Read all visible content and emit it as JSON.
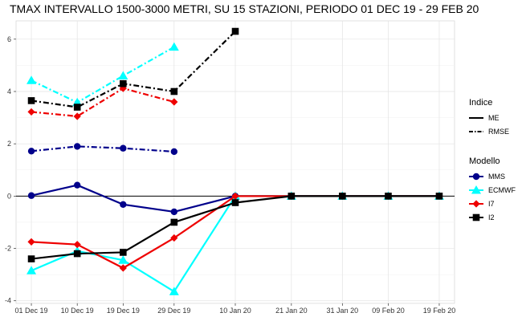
{
  "chart_data": {
    "type": "line",
    "title": "TMAX INTERVALLO 1500-3000 METRI, SU 15 STAZIONI, PERIODO 01 DEC 19  -  29 FEB 20",
    "xlabel": "",
    "ylabel": "",
    "categories": [
      "01 Dec 19",
      "10 Dec 19",
      "19 Dec 19",
      "29 Dec 19",
      "10 Jan 20",
      "21 Jan 20",
      "31 Jan 20",
      "09 Feb 20",
      "19 Feb 20"
    ],
    "x_days": [
      0,
      9,
      18,
      28,
      40,
      51,
      61,
      70,
      80
    ],
    "yticks": [
      -4,
      -2,
      0,
      2,
      4,
      6
    ],
    "ylim": [
      -4.1,
      6.7
    ],
    "grid": true,
    "legend_position": "right",
    "legend": {
      "indice_title": "Indice",
      "indice": [
        {
          "name": "ME",
          "dash": "solid"
        },
        {
          "name": "RMSE",
          "dash": "dotdash"
        }
      ],
      "modello_title": "Modello",
      "modello": [
        {
          "name": "MMS",
          "color": "#00008b",
          "shape": "circle"
        },
        {
          "name": "ECMWF",
          "color": "#00ffff",
          "shape": "triangle"
        },
        {
          "name": "I7",
          "color": "#ee0000",
          "shape": "diamond"
        },
        {
          "name": "I2",
          "color": "#000000",
          "shape": "square"
        }
      ]
    },
    "series": [
      {
        "name": "MMS",
        "indice": "ME",
        "color": "#00008b",
        "shape": "circle",
        "points": [
          [
            0,
            0.02
          ],
          [
            9,
            0.42
          ],
          [
            18,
            -0.32
          ],
          [
            28,
            -0.6
          ],
          [
            40,
            0.0
          ],
          [
            51,
            0.0
          ],
          [
            61,
            0.0
          ],
          [
            70,
            0.0
          ],
          [
            80,
            0.0
          ]
        ]
      },
      {
        "name": "ECMWF",
        "indice": "ME",
        "color": "#00ffff",
        "shape": "triangle",
        "points": [
          [
            0,
            -2.85
          ],
          [
            9,
            -2.1
          ],
          [
            18,
            -2.45
          ],
          [
            28,
            -3.65
          ],
          [
            40,
            0.0
          ],
          [
            51,
            0.0
          ],
          [
            61,
            0.0
          ],
          [
            70,
            0.0
          ],
          [
            80,
            0.0
          ]
        ]
      },
      {
        "name": "I7",
        "indice": "ME",
        "color": "#ee0000",
        "shape": "diamond",
        "points": [
          [
            0,
            -1.75
          ],
          [
            9,
            -1.85
          ],
          [
            18,
            -2.75
          ],
          [
            28,
            -1.6
          ],
          [
            40,
            0.0
          ],
          [
            51,
            0.0
          ],
          [
            61,
            0.0
          ],
          [
            70,
            0.0
          ],
          [
            80,
            0.0
          ]
        ]
      },
      {
        "name": "I2",
        "indice": "ME",
        "color": "#000000",
        "shape": "square",
        "points": [
          [
            0,
            -2.4
          ],
          [
            9,
            -2.2
          ],
          [
            18,
            -2.15
          ],
          [
            28,
            -1.0
          ],
          [
            40,
            -0.25
          ],
          [
            51,
            0.0
          ],
          [
            61,
            0.0
          ],
          [
            70,
            0.0
          ],
          [
            80,
            0.0
          ]
        ]
      },
      {
        "name": "MMS",
        "indice": "RMSE",
        "color": "#00008b",
        "shape": "circle",
        "points": [
          [
            0,
            1.72
          ],
          [
            9,
            1.9
          ],
          [
            18,
            1.83
          ],
          [
            28,
            1.7
          ]
        ]
      },
      {
        "name": "ECMWF",
        "indice": "RMSE",
        "color": "#00ffff",
        "shape": "triangle",
        "points": [
          [
            0,
            4.42
          ],
          [
            9,
            3.58
          ],
          [
            18,
            4.6
          ],
          [
            28,
            5.7
          ]
        ]
      },
      {
        "name": "I7",
        "indice": "RMSE",
        "color": "#ee0000",
        "shape": "diamond",
        "points": [
          [
            0,
            3.22
          ],
          [
            9,
            3.05
          ],
          [
            18,
            4.12
          ],
          [
            28,
            3.6
          ]
        ]
      },
      {
        "name": "I2",
        "indice": "RMSE",
        "color": "#000000",
        "shape": "square",
        "points": [
          [
            0,
            3.65
          ],
          [
            9,
            3.4
          ],
          [
            18,
            4.3
          ],
          [
            28,
            4.0
          ],
          [
            40,
            6.3
          ]
        ]
      }
    ]
  }
}
